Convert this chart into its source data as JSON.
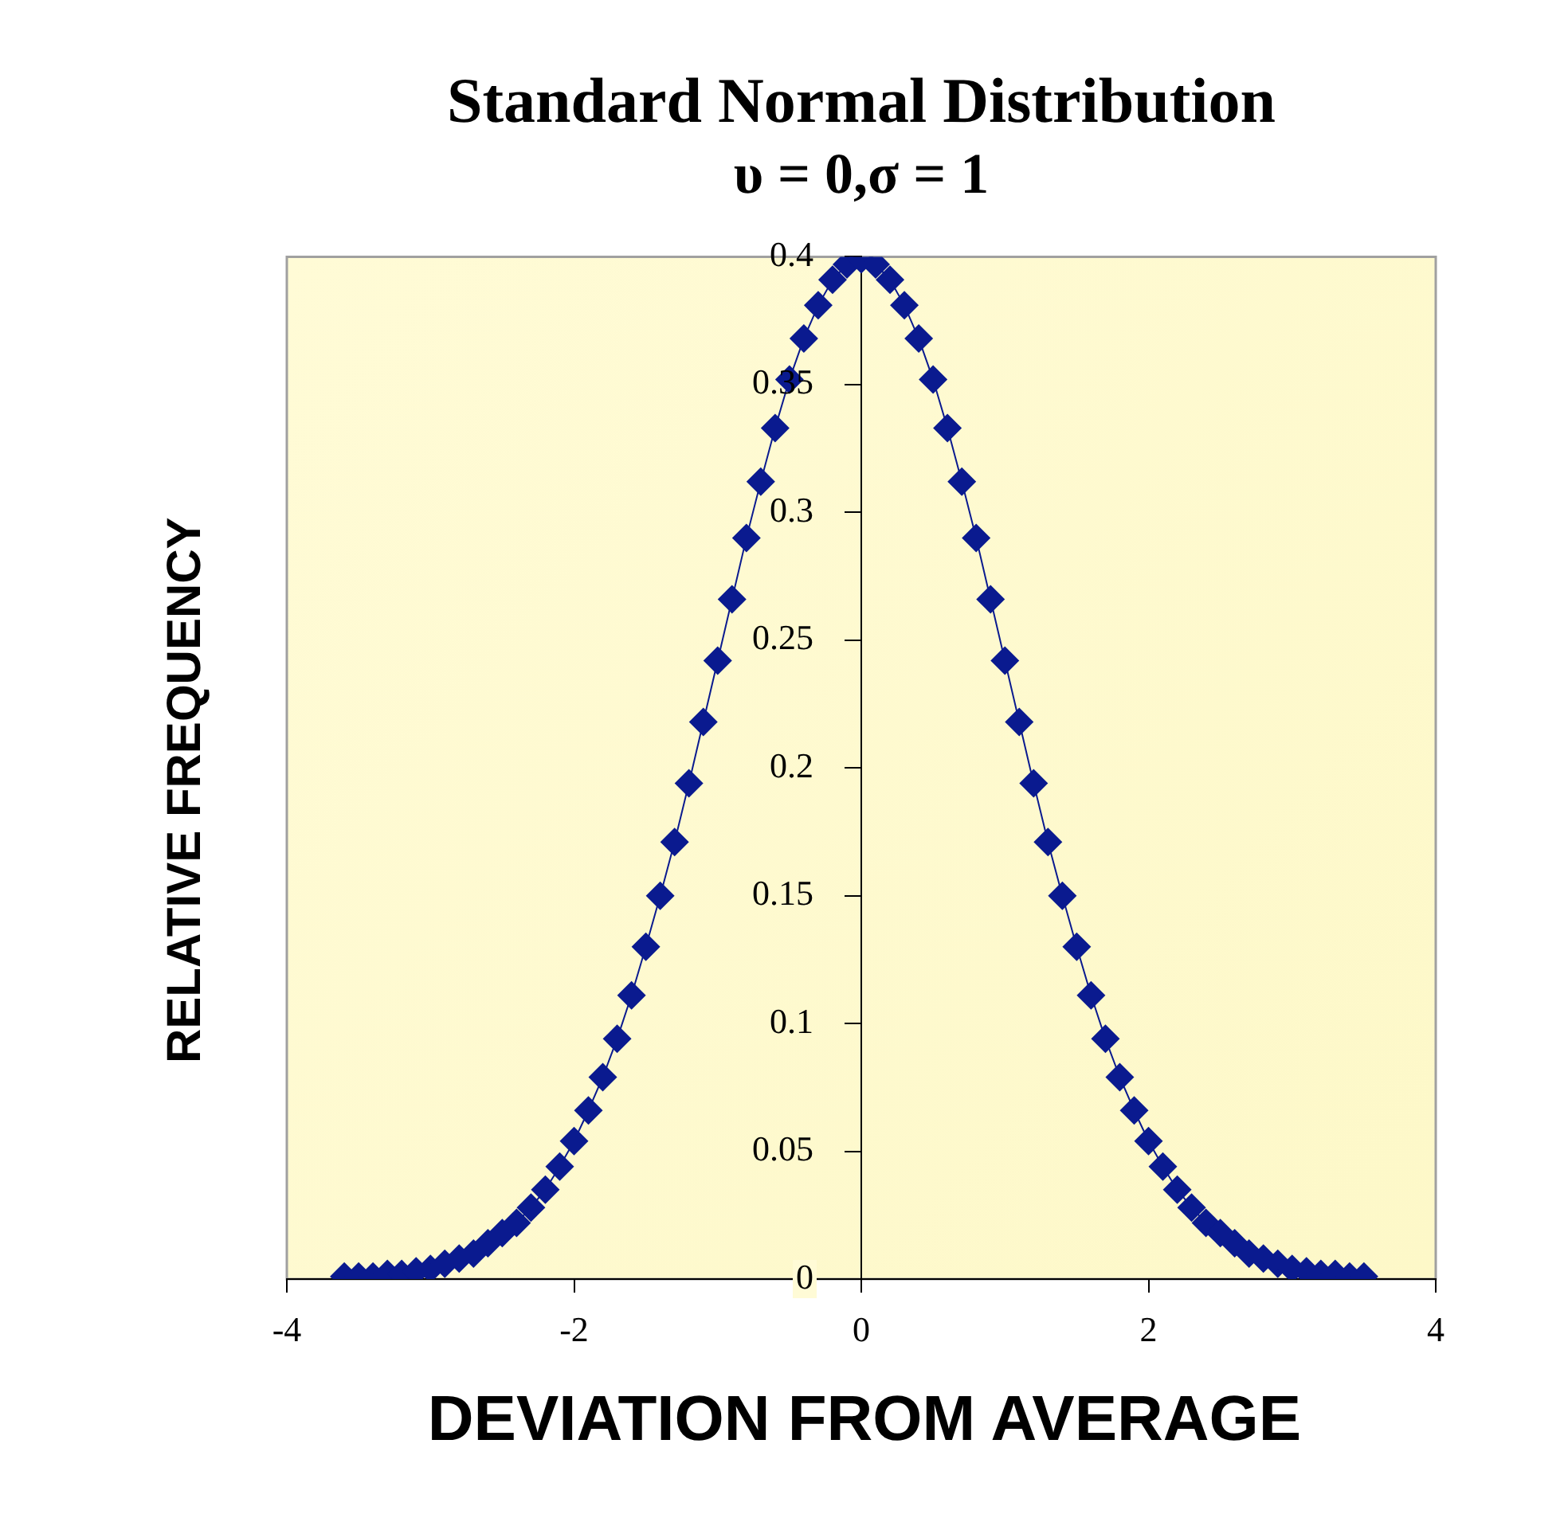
{
  "chart_data": {
    "type": "line",
    "title": "Standard Normal Distribution",
    "subtitle": "υ = 0,σ = 1",
    "xlabel": "DEVIATION FROM AVERAGE",
    "ylabel": "RELATIVE FREQUENCY",
    "x": [
      -3.6,
      -3.5,
      -3.4,
      -3.3,
      -3.2,
      -3.1,
      -3.0,
      -2.9,
      -2.8,
      -2.7,
      -2.6,
      -2.5,
      -2.4,
      -2.3,
      -2.2,
      -2.1,
      -2.0,
      -1.9,
      -1.8,
      -1.7,
      -1.6,
      -1.5,
      -1.4,
      -1.3,
      -1.2,
      -1.1,
      -1.0,
      -0.9,
      -0.8,
      -0.7,
      -0.6,
      -0.5,
      -0.4,
      -0.3,
      -0.2,
      -0.1,
      0,
      0.1,
      0.2,
      0.3,
      0.4,
      0.5,
      0.6,
      0.7,
      0.8,
      0.9,
      1.0,
      1.1,
      1.2,
      1.3,
      1.4,
      1.5,
      1.6,
      1.7,
      1.8,
      1.9,
      2.0,
      2.1,
      2.2,
      2.3,
      2.4,
      2.5,
      2.6,
      2.7,
      2.8,
      2.9,
      3.0,
      3.1,
      3.2,
      3.3,
      3.4,
      3.5
    ],
    "series": [
      {
        "color": "#0a1a8f",
        "values": [
          0.001,
          0.001,
          0.001,
          0.002,
          0.002,
          0.003,
          0.004,
          0.006,
          0.008,
          0.01,
          0.014,
          0.018,
          0.022,
          0.028,
          0.035,
          0.044,
          0.054,
          0.066,
          0.079,
          0.094,
          0.111,
          0.13,
          0.15,
          0.171,
          0.194,
          0.218,
          0.242,
          0.266,
          0.29,
          0.312,
          0.333,
          0.352,
          0.368,
          0.381,
          0.391,
          0.397,
          0.399,
          0.397,
          0.391,
          0.381,
          0.368,
          0.352,
          0.333,
          0.312,
          0.29,
          0.266,
          0.242,
          0.218,
          0.194,
          0.171,
          0.15,
          0.13,
          0.111,
          0.094,
          0.079,
          0.066,
          0.054,
          0.044,
          0.035,
          0.028,
          0.022,
          0.018,
          0.014,
          0.01,
          0.008,
          0.006,
          0.004,
          0.003,
          0.002,
          0.002,
          0.001,
          0.001
        ]
      }
    ],
    "xlim": [
      -4,
      4
    ],
    "xticks": [
      -4,
      -2,
      0,
      2,
      4
    ],
    "ylim": [
      0,
      0.4
    ],
    "yticks": [
      0,
      0.05,
      0.1,
      0.15,
      0.2,
      0.25,
      0.3,
      0.35,
      0.4
    ],
    "grid": false,
    "legend": false,
    "marker": "diamond",
    "line_style": "solid"
  }
}
